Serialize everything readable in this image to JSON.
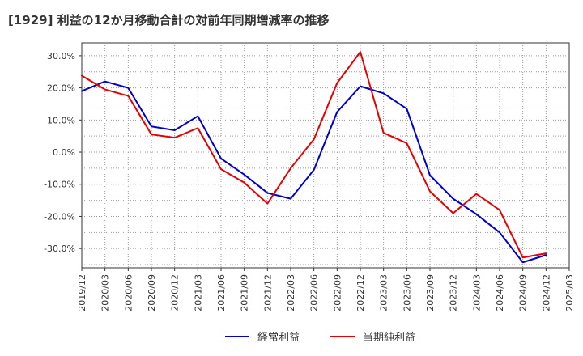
{
  "chart_data": {
    "type": "line",
    "title": "[1929]  利益の12か月移動合計の対前年同期増減率の推移",
    "x": [
      "2019/12",
      "2020/03",
      "2020/06",
      "2020/09",
      "2020/12",
      "2021/03",
      "2021/06",
      "2021/09",
      "2021/12",
      "2022/03",
      "2022/06",
      "2022/09",
      "2022/12",
      "2023/03",
      "2023/06",
      "2023/09",
      "2023/12",
      "2024/03",
      "2024/06",
      "2024/09",
      "2024/12",
      "2025/03"
    ],
    "series": [
      {
        "name": "経常利益",
        "color": "#0000cc",
        "values": [
          19.0,
          22.0,
          20.0,
          8.0,
          6.8,
          11.2,
          -2.0,
          -7.0,
          -12.7,
          -14.5,
          -5.5,
          12.5,
          20.5,
          18.3,
          13.5,
          -7.2,
          -14.5,
          -19.3,
          -25.0,
          -34.3,
          -32.0,
          null
        ]
      },
      {
        "name": "当期純利益",
        "color": "#e60000",
        "values": [
          23.8,
          19.5,
          17.5,
          5.5,
          4.5,
          7.5,
          -5.3,
          -9.5,
          -16.0,
          -5.0,
          4.0,
          21.5,
          31.2,
          6.0,
          2.8,
          -12.2,
          -19.0,
          -13.0,
          -18.0,
          -32.8,
          -31.5,
          null
        ]
      }
    ],
    "ylim": [
      -36,
      34
    ],
    "yticks": [
      30,
      20,
      10,
      0,
      -10,
      -20,
      -30
    ],
    "ytick_labels": [
      "30.0%",
      "20.0%",
      "10.0%",
      "0.0%",
      "-10.0%",
      "-20.0%",
      "-30.0%"
    ],
    "grid": true,
    "legend_position": "bottom-center"
  }
}
